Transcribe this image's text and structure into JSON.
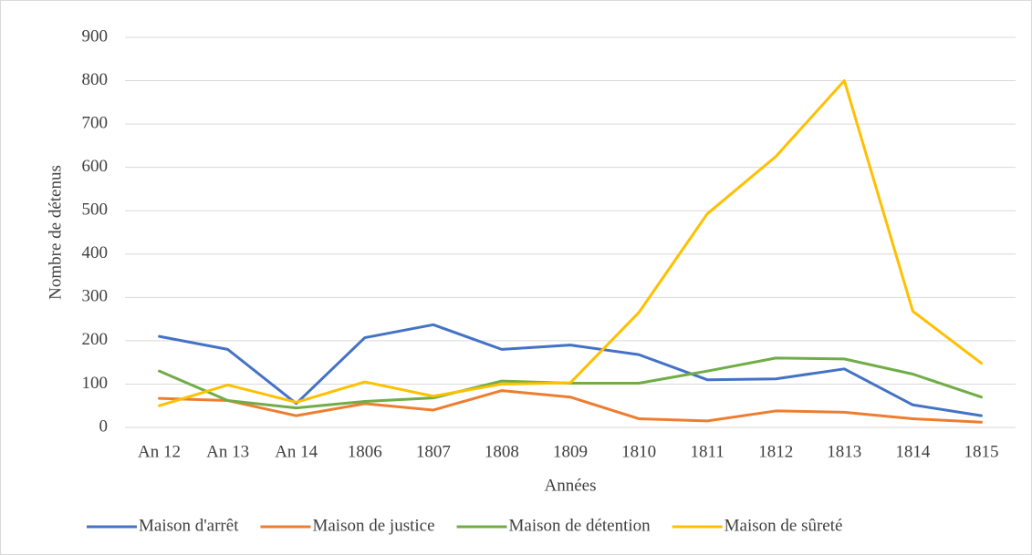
{
  "chart_data": {
    "type": "line",
    "x_label": "Années",
    "y_label": "Nombre de détenus",
    "categories": [
      "An 12",
      "An 13",
      "An 14",
      "1806",
      "1807",
      "1808",
      "1809",
      "1810",
      "1811",
      "1812",
      "1813",
      "1814",
      "1815"
    ],
    "series": [
      {
        "name": "Maison d'arrêt",
        "color": "#4472c4",
        "values": [
          210,
          180,
          55,
          207,
          237,
          180,
          190,
          168,
          110,
          112,
          135,
          52,
          27
        ]
      },
      {
        "name": "Maison de justice",
        "color": "#ed7d31",
        "values": [
          67,
          62,
          27,
          55,
          40,
          85,
          70,
          20,
          15,
          38,
          35,
          20,
          12
        ]
      },
      {
        "name": "Maison de détention",
        "color": "#70ad47",
        "values": [
          130,
          62,
          45,
          60,
          68,
          107,
          102,
          102,
          130,
          160,
          158,
          123,
          70
        ]
      },
      {
        "name": "Maison de sûreté",
        "color": "#ffc000",
        "values": [
          50,
          98,
          58,
          105,
          72,
          100,
          103,
          265,
          493,
          625,
          800,
          268,
          148
        ]
      }
    ],
    "ylim": [
      0,
      900
    ],
    "yticks": [
      0,
      100,
      200,
      300,
      400,
      500,
      600,
      700,
      800,
      900
    ],
    "grid": true,
    "legend": "bottom"
  }
}
